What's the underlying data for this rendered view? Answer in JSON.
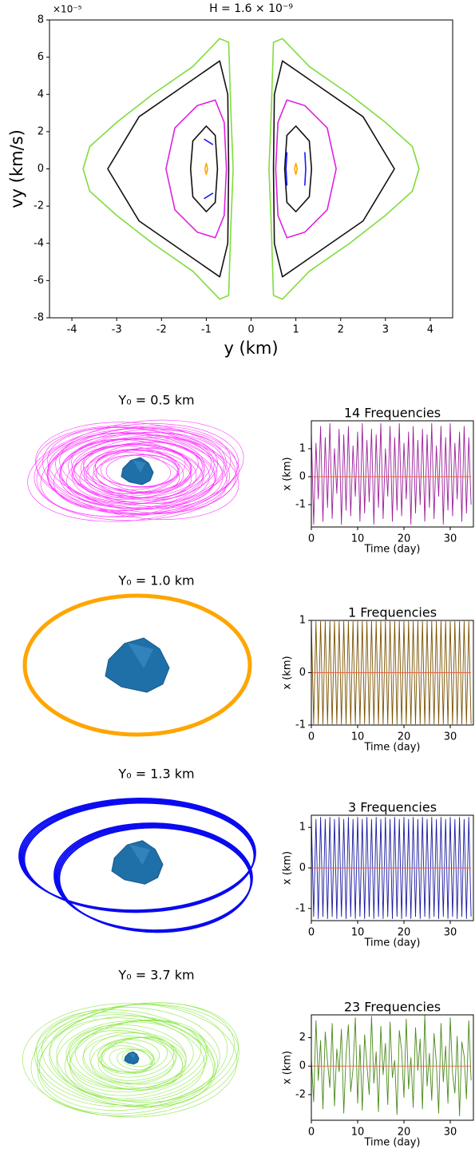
{
  "chart_data": [
    {
      "type": "line",
      "title": "H = 1.6 × 10⁻⁹",
      "x_label": "y (km)",
      "y_label": "vy (km/s)",
      "y_offset_label": "×10⁻⁵",
      "xlim": [
        -4.5,
        4.5
      ],
      "xticks": [
        -4,
        -3,
        -2,
        -1,
        0,
        1,
        2,
        3,
        4
      ],
      "ylim": [
        -8,
        8
      ],
      "yticks": [
        -8,
        -6,
        -4,
        -2,
        0,
        2,
        4,
        6,
        8
      ],
      "series": [
        {
          "color": "#111111",
          "x": [
            0.5,
            0.52,
            0.7,
            1.3,
            2.5,
            3.2,
            2.5,
            1.3,
            0.7,
            0.52,
            0.5
          ],
          "values": [
            0,
            4,
            5.8,
            4.8,
            2.8,
            0,
            -2.8,
            -4.8,
            -5.8,
            -4,
            0
          ]
        },
        {
          "color": "#111111",
          "x": [
            0.75,
            0.8,
            1,
            1.3,
            1.35,
            1.3,
            1,
            0.8,
            0.75
          ],
          "values": [
            0,
            1.8,
            2.3,
            1.5,
            0,
            -1.5,
            -2.3,
            -1.8,
            0
          ]
        },
        {
          "color": "#111111",
          "x": [
            -0.5,
            -0.52,
            -0.7,
            -1.3,
            -2.5,
            -3.2,
            -2.5,
            -1.3,
            -0.7,
            -0.52,
            -0.5
          ],
          "values": [
            0,
            4,
            5.8,
            4.8,
            2.8,
            0,
            -2.8,
            -4.8,
            -5.8,
            -4,
            0
          ]
        },
        {
          "color": "#111111",
          "x": [
            -0.75,
            -0.8,
            -1,
            -1.3,
            -1.35,
            -1.3,
            -1,
            -0.8,
            -0.75
          ],
          "values": [
            0,
            1.8,
            2.3,
            1.5,
            0,
            -1.5,
            -2.3,
            -1.8,
            0
          ]
        },
        {
          "color": "#7fdc3c",
          "x": [
            0.5,
            0.45,
            0.4,
            0.45,
            0.5,
            0.7,
            1.3,
            2.2,
            3.0,
            3.6,
            3.75,
            3.6,
            3.0,
            2.2,
            1.3,
            0.7,
            0.5
          ],
          "values": [
            -6.8,
            -3,
            0,
            3,
            6.8,
            7,
            5.5,
            4,
            2.5,
            1.2,
            0,
            -1.2,
            -2.5,
            -4,
            -5.5,
            -7,
            -6.8
          ]
        },
        {
          "color": "#7fdc3c",
          "x": [
            -0.5,
            -0.45,
            -0.4,
            -0.45,
            -0.5,
            -0.7,
            -1.3,
            -2.2,
            -3.0,
            -3.6,
            -3.75,
            -3.6,
            -3.0,
            -2.2,
            -1.3,
            -0.7,
            -0.5
          ],
          "values": [
            -6.8,
            -3,
            0,
            3,
            6.8,
            7,
            5.5,
            4,
            2.5,
            1.2,
            0,
            -1.2,
            -2.5,
            -4,
            -5.5,
            -7,
            -6.8
          ]
        },
        {
          "color": "#e020e0",
          "x": [
            0.55,
            0.6,
            0.8,
            1.2,
            1.7,
            1.9,
            1.7,
            1.2,
            0.8,
            0.6,
            0.55
          ],
          "values": [
            0,
            2.5,
            3.7,
            3.4,
            2.2,
            0,
            -2.2,
            -3.4,
            -3.7,
            -2.5,
            0
          ]
        },
        {
          "color": "#e020e0",
          "x": [
            -0.55,
            -0.6,
            -0.8,
            -1.2,
            -1.7,
            -1.9,
            -1.7,
            -1.2,
            -0.8,
            -0.6,
            -0.55
          ],
          "values": [
            0,
            2.5,
            3.7,
            3.4,
            2.2,
            0,
            -2.2,
            -3.4,
            -3.7,
            -2.5,
            0
          ]
        },
        {
          "color": "#1a1aff",
          "x": [
            0.8,
            0.78,
            0.8,
            null,
            1.2,
            1.22,
            1.2
          ],
          "values": [
            -0.9,
            0,
            0.9,
            null,
            0.9,
            0,
            -0.9
          ]
        },
        {
          "color": "#1a1aff",
          "x": [
            -1.05,
            -0.85,
            null,
            -1.05,
            -0.85
          ],
          "values": [
            1.6,
            1.3,
            null,
            -1.6,
            -1.3
          ]
        },
        {
          "color": "#ffa500",
          "x": [
            0.97,
            1,
            1.03,
            1,
            0.97
          ],
          "values": [
            0,
            0.3,
            0,
            -0.3,
            0
          ]
        },
        {
          "color": "#ffa500",
          "x": [
            -1.03,
            -1,
            -0.97,
            -1,
            -1.03
          ],
          "values": [
            0,
            0.3,
            0,
            -0.3,
            0
          ]
        }
      ]
    },
    {
      "type": "orbit",
      "title": "Y₀ = 0.5 km",
      "color": "#ff33ff"
    },
    {
      "type": "line",
      "title": "14 Frequencies",
      "x_label": "Time (day)",
      "y_label": "x (km)",
      "xlim": [
        0,
        35
      ],
      "xticks": [
        0,
        10,
        20,
        30
      ],
      "ylim": [
        -1.8,
        2.0
      ],
      "yticks": [
        -1,
        0,
        1
      ],
      "x": [
        0,
        0.5,
        1,
        1.5,
        2,
        2.5,
        3,
        3.5,
        4,
        4.5,
        5,
        5.5,
        6,
        6.5,
        7,
        7.5,
        8,
        8.5,
        9,
        9.5,
        10,
        10.5,
        11,
        11.5,
        12,
        12.5,
        13,
        13.5,
        14,
        14.5,
        15,
        15.5,
        16,
        16.5,
        17,
        17.5,
        18,
        18.5,
        19,
        19.5,
        20,
        20.5,
        21,
        21.5,
        22,
        22.5,
        23,
        23.5,
        24,
        24.5,
        25,
        25.5,
        26,
        26.5,
        27,
        27.5,
        28,
        28.5,
        29,
        29.5,
        30,
        30.5,
        31,
        31.5,
        32,
        32.5,
        33,
        33.5,
        34,
        34.5
      ],
      "series": [
        {
          "color": "#9b1f9b",
          "values": [
            1.6,
            -1.7,
            1.2,
            -0.8,
            1.8,
            -1.6,
            1.4,
            -1.1,
            1.9,
            -1.5,
            1.0,
            -0.6,
            1.7,
            -1.7,
            1.5,
            -1.2,
            1.8,
            -1.4,
            1.1,
            -0.7,
            1.6,
            -1.6,
            1.9,
            -1.3,
            1.3,
            -0.9,
            1.7,
            -1.7,
            1.5,
            -1.1,
            1.9,
            -1.5,
            1.0,
            -0.7,
            1.8,
            -1.6,
            1.4,
            -1.2,
            1.9,
            -1.4,
            1.2,
            -0.8,
            1.6,
            -1.7,
            1.8,
            -1.3,
            1.3,
            -1.0,
            1.7,
            -1.6,
            1.5,
            -1.1,
            1.9,
            -1.5,
            1.1,
            -0.7,
            1.8,
            -1.7,
            1.4,
            -1.2,
            1.9,
            -1.4,
            1.2,
            -0.8,
            1.6,
            -1.6,
            1.8,
            -1.3,
            1.4,
            -1.0
          ]
        },
        {
          "color": "#e8623c",
          "x": [
            0,
            34.5
          ],
          "values": [
            0,
            0
          ]
        }
      ]
    },
    {
      "type": "orbit",
      "title": "Y₀ = 1.0 km",
      "color": "#ffa500"
    },
    {
      "type": "line",
      "title": "1 Frequencies",
      "x_label": "Time (day)",
      "y_label": "x (km)",
      "xlim": [
        0,
        35
      ],
      "xticks": [
        0,
        10,
        20,
        30
      ],
      "ylim": [
        -1,
        1
      ],
      "yticks": [
        -1,
        0,
        1
      ],
      "x": [
        0,
        0.5,
        1,
        1.5,
        2,
        2.5,
        3,
        3.5,
        4,
        4.5,
        5,
        5.5,
        6,
        6.5,
        7,
        7.5,
        8,
        8.5,
        9,
        9.5,
        10,
        10.5,
        11,
        11.5,
        12,
        12.5,
        13,
        13.5,
        14,
        14.5,
        15,
        15.5,
        16,
        16.5,
        17,
        17.5,
        18,
        18.5,
        19,
        19.5,
        20,
        20.5,
        21,
        21.5,
        22,
        22.5,
        23,
        23.5,
        24,
        24.5,
        25,
        25.5,
        26,
        26.5,
        27,
        27.5,
        28,
        28.5,
        29,
        29.5,
        30,
        30.5,
        31,
        31.5,
        32,
        32.5,
        33,
        33.5,
        34,
        34.5
      ],
      "series": [
        {
          "color": "#7a5200",
          "values": [
            0.98,
            -0.98,
            0.98,
            -0.98,
            0.98,
            -0.98,
            0.98,
            -0.98,
            0.98,
            -0.98,
            0.98,
            -0.98,
            0.98,
            -0.98,
            0.98,
            -0.98,
            0.98,
            -0.98,
            0.98,
            -0.98,
            0.98,
            -0.98,
            0.98,
            -0.98,
            0.98,
            -0.98,
            0.98,
            -0.98,
            0.98,
            -0.98,
            0.98,
            -0.98,
            0.98,
            -0.98,
            0.98,
            -0.98,
            0.98,
            -0.98,
            0.98,
            -0.98,
            0.98,
            -0.98,
            0.98,
            -0.98,
            0.98,
            -0.98,
            0.98,
            -0.98,
            0.98,
            -0.98,
            0.98,
            -0.98,
            0.98,
            -0.98,
            0.98,
            -0.98,
            0.98,
            -0.98,
            0.98,
            -0.98,
            0.98,
            -0.98,
            0.98,
            -0.98,
            0.98,
            -0.98,
            0.98,
            -0.98,
            0.98,
            -0.98
          ]
        },
        {
          "color": "#e8623c",
          "x": [
            0,
            34.5
          ],
          "values": [
            0,
            0
          ]
        }
      ]
    },
    {
      "type": "orbit",
      "title": "Y₀ = 1.3 km",
      "color": "#0a0af0"
    },
    {
      "type": "line",
      "title": "3 Frequencies",
      "x_label": "Time (day)",
      "y_label": "x (km)",
      "xlim": [
        0,
        35
      ],
      "xticks": [
        0,
        10,
        20,
        30
      ],
      "ylim": [
        -1.3,
        1.3
      ],
      "yticks": [
        -1,
        0,
        1
      ],
      "x": [
        0,
        0.5,
        1,
        1.5,
        2,
        2.5,
        3,
        3.5,
        4,
        4.5,
        5,
        5.5,
        6,
        6.5,
        7,
        7.5,
        8,
        8.5,
        9,
        9.5,
        10,
        10.5,
        11,
        11.5,
        12,
        12.5,
        13,
        13.5,
        14,
        14.5,
        15,
        15.5,
        16,
        16.5,
        17,
        17.5,
        18,
        18.5,
        19,
        19.5,
        20,
        20.5,
        21,
        21.5,
        22,
        22.5,
        23,
        23.5,
        24,
        24.5,
        25,
        25.5,
        26,
        26.5,
        27,
        27.5,
        28,
        28.5,
        29,
        29.5,
        30,
        30.5,
        31,
        31.5,
        32,
        32.5,
        33,
        33.5,
        34,
        34.5
      ],
      "series": [
        {
          "color": "#1a1aa0",
          "values": [
            1.25,
            -1.2,
            1.2,
            -1.25,
            1.25,
            -1.2,
            1.2,
            -1.25,
            1.25,
            -1.2,
            1.2,
            -1.25,
            1.25,
            -1.2,
            1.2,
            -1.25,
            1.25,
            -1.2,
            1.2,
            -1.25,
            1.25,
            -1.2,
            1.2,
            -1.25,
            1.25,
            -1.2,
            1.2,
            -1.25,
            1.25,
            -1.2,
            1.2,
            -1.25,
            1.25,
            -1.2,
            1.2,
            -1.25,
            1.25,
            -1.2,
            1.2,
            -1.25,
            1.25,
            -1.2,
            1.2,
            -1.25,
            1.25,
            -1.2,
            1.2,
            -1.25,
            1.25,
            -1.2,
            1.2,
            -1.25,
            1.25,
            -1.2,
            1.2,
            -1.25,
            1.25,
            -1.2,
            1.2,
            -1.25,
            1.25,
            -1.2,
            1.2,
            -1.25,
            1.25,
            -1.2,
            1.2,
            -1.25,
            1.25,
            -1.2
          ]
        },
        {
          "color": "#e8623c",
          "x": [
            0,
            34.5
          ],
          "values": [
            0,
            0
          ]
        }
      ]
    },
    {
      "type": "orbit",
      "title": "Y₀ = 3.7 km",
      "color": "#8ee84a"
    },
    {
      "type": "line",
      "title": "23 Frequencies",
      "x_label": "Time (day)",
      "y_label": "x (km)",
      "xlim": [
        0,
        35
      ],
      "xticks": [
        0,
        10,
        20,
        30
      ],
      "ylim": [
        -3.8,
        3.6
      ],
      "yticks": [
        -2,
        0,
        2
      ],
      "x": [
        0,
        0.5,
        1,
        1.5,
        2,
        2.5,
        3,
        3.5,
        4,
        4.5,
        5,
        5.5,
        6,
        6.5,
        7,
        7.5,
        8,
        8.5,
        9,
        9.5,
        10,
        10.5,
        11,
        11.5,
        12,
        12.5,
        13,
        13.5,
        14,
        14.5,
        15,
        15.5,
        16,
        16.5,
        17,
        17.5,
        18,
        18.5,
        19,
        19.5,
        20,
        20.5,
        21,
        21.5,
        22,
        22.5,
        23,
        23.5,
        24,
        24.5,
        25,
        25.5,
        26,
        26.5,
        27,
        27.5,
        28,
        28.5,
        29,
        29.5,
        30,
        30.5,
        31,
        31.5,
        32,
        32.5,
        33,
        33.5,
        34,
        34.5
      ],
      "series": [
        {
          "color": "#4a8a1a",
          "values": [
            0.5,
            -2.5,
            3.2,
            -1.0,
            1.8,
            -3.0,
            2.4,
            0.3,
            -1.5,
            3.0,
            -2.8,
            1.2,
            -0.4,
            2.6,
            -3.3,
            0.8,
            2.9,
            -1.8,
            -0.2,
            3.4,
            -2.6,
            1.5,
            -3.1,
            2.2,
            0.1,
            -2.0,
            3.5,
            -1.2,
            1.0,
            -3.2,
            2.8,
            -0.6,
            1.6,
            -2.7,
            3.1,
            -0.8,
            0.4,
            -3.4,
            2.5,
            1.1,
            -2.2,
            3.3,
            -1.6,
            0.6,
            -2.9,
            2.7,
            -0.3,
            1.9,
            -3.0,
            3.6,
            -1.4,
            0.9,
            -2.4,
            2.3,
            0.2,
            -3.3,
            3.0,
            -1.1,
            1.4,
            -2.6,
            3.4,
            -0.5,
            -1.9,
            2.1,
            -3.5,
            1.7,
            0.7,
            -2.3,
            3.2,
            -1.0
          ]
        },
        {
          "color": "#e8623c",
          "x": [
            0,
            34.5
          ],
          "values": [
            0,
            0
          ]
        }
      ]
    }
  ]
}
